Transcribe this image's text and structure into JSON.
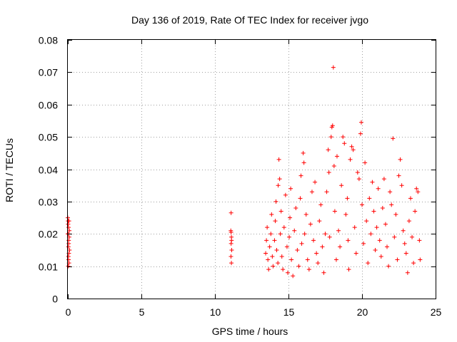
{
  "chart_data": {
    "type": "scatter",
    "title": "Day 136 of 2019, Rate Of TEC Index for receiver jvgo",
    "xlabel": "GPS time / hours",
    "ylabel": "ROTI / TECUs",
    "xlim": [
      0,
      25
    ],
    "ylim": [
      0,
      0.08
    ],
    "x_ticks": [
      0,
      5,
      10,
      15,
      20,
      25
    ],
    "x_tick_labels": [
      "0",
      "5",
      "10",
      "15",
      "20",
      "25"
    ],
    "y_ticks": [
      0,
      0.01,
      0.02,
      0.03,
      0.04,
      0.05,
      0.06,
      0.07,
      0.08
    ],
    "y_tick_labels": [
      "0",
      "0.01",
      "0.02",
      "0.03",
      "0.04",
      "0.05",
      "0.06",
      "0.07",
      "0.08"
    ],
    "grid": true,
    "legend": "none",
    "marker": "plus",
    "series_color": "#ff0000",
    "series": [
      {
        "points": [
          [
            0.0,
            0.025
          ],
          [
            0.02,
            0.024
          ],
          [
            0.05,
            0.022
          ],
          [
            0.03,
            0.02
          ],
          [
            0.06,
            0.018
          ],
          [
            0.04,
            0.016
          ],
          [
            0.07,
            0.014
          ],
          [
            0.05,
            0.012
          ],
          [
            0.08,
            0.011
          ],
          [
            0.1,
            0.021
          ],
          [
            0.09,
            0.019
          ],
          [
            0.02,
            0.023
          ],
          [
            0.06,
            0.017
          ],
          [
            0.04,
            0.013
          ],
          [
            0.11,
            0.015
          ],
          [
            0.03,
            0.01
          ],
          [
            0.08,
            0.024
          ],
          [
            0.0,
            0.02
          ],
          [
            11.1,
            0.0265
          ],
          [
            11.08,
            0.021
          ],
          [
            11.12,
            0.019
          ],
          [
            11.1,
            0.017
          ],
          [
            11.14,
            0.015
          ],
          [
            11.09,
            0.013
          ],
          [
            11.12,
            0.011
          ],
          [
            11.1,
            0.0205
          ],
          [
            11.13,
            0.018
          ],
          [
            13.45,
            0.014
          ],
          [
            13.5,
            0.018
          ],
          [
            13.55,
            0.022
          ],
          [
            13.6,
            0.012
          ],
          [
            13.65,
            0.009
          ],
          [
            13.72,
            0.016
          ],
          [
            13.8,
            0.02
          ],
          [
            13.85,
            0.026
          ],
          [
            13.9,
            0.013
          ],
          [
            13.95,
            0.01
          ],
          [
            14.05,
            0.018
          ],
          [
            14.1,
            0.024
          ],
          [
            14.15,
            0.03
          ],
          [
            14.2,
            0.015
          ],
          [
            14.28,
            0.011
          ],
          [
            14.3,
            0.035
          ],
          [
            14.35,
            0.043
          ],
          [
            14.4,
            0.037
          ],
          [
            14.45,
            0.02
          ],
          [
            14.5,
            0.027
          ],
          [
            14.55,
            0.013
          ],
          [
            14.62,
            0.009
          ],
          [
            14.7,
            0.022
          ],
          [
            14.8,
            0.032
          ],
          [
            14.9,
            0.016
          ],
          [
            14.95,
            0.008
          ],
          [
            15.05,
            0.019
          ],
          [
            15.1,
            0.025
          ],
          [
            15.15,
            0.034
          ],
          [
            15.2,
            0.012
          ],
          [
            15.3,
            0.007
          ],
          [
            15.4,
            0.021
          ],
          [
            15.5,
            0.028
          ],
          [
            15.6,
            0.015
          ],
          [
            15.7,
            0.01
          ],
          [
            15.8,
            0.031
          ],
          [
            15.85,
            0.038
          ],
          [
            15.9,
            0.017
          ],
          [
            16.0,
            0.045
          ],
          [
            16.05,
            0.042
          ],
          [
            16.1,
            0.02
          ],
          [
            16.2,
            0.026
          ],
          [
            16.3,
            0.012
          ],
          [
            16.4,
            0.009
          ],
          [
            16.5,
            0.023
          ],
          [
            16.6,
            0.033
          ],
          [
            16.7,
            0.018
          ],
          [
            16.8,
            0.036
          ],
          [
            16.9,
            0.014
          ],
          [
            17.0,
            0.011
          ],
          [
            17.1,
            0.024
          ],
          [
            17.2,
            0.029
          ],
          [
            17.3,
            0.016
          ],
          [
            17.4,
            0.008
          ],
          [
            17.5,
            0.02
          ],
          [
            17.6,
            0.033
          ],
          [
            17.7,
            0.046
          ],
          [
            17.75,
            0.039
          ],
          [
            17.8,
            0.019
          ],
          [
            17.9,
            0.05
          ],
          [
            17.95,
            0.053
          ],
          [
            18.0,
            0.0535
          ],
          [
            18.05,
            0.0715
          ],
          [
            18.1,
            0.041
          ],
          [
            18.15,
            0.027
          ],
          [
            18.25,
            0.012
          ],
          [
            18.3,
            0.044
          ],
          [
            18.4,
            0.021
          ],
          [
            18.5,
            0.016
          ],
          [
            18.6,
            0.035
          ],
          [
            18.7,
            0.05
          ],
          [
            18.8,
            0.048
          ],
          [
            18.9,
            0.026
          ],
          [
            19.0,
            0.031
          ],
          [
            19.05,
            0.018
          ],
          [
            19.1,
            0.009
          ],
          [
            19.2,
            0.043
          ],
          [
            19.3,
            0.047
          ],
          [
            19.4,
            0.046
          ],
          [
            19.5,
            0.022
          ],
          [
            19.6,
            0.014
          ],
          [
            19.7,
            0.039
          ],
          [
            19.8,
            0.037
          ],
          [
            19.9,
            0.051
          ],
          [
            19.95,
            0.0545
          ],
          [
            20.0,
            0.029
          ],
          [
            20.1,
            0.017
          ],
          [
            20.2,
            0.042
          ],
          [
            20.3,
            0.024
          ],
          [
            20.4,
            0.011
          ],
          [
            20.5,
            0.031
          ],
          [
            20.6,
            0.02
          ],
          [
            20.7,
            0.036
          ],
          [
            20.8,
            0.027
          ],
          [
            20.9,
            0.015
          ],
          [
            21.0,
            0.022
          ],
          [
            21.1,
            0.034
          ],
          [
            21.2,
            0.018
          ],
          [
            21.3,
            0.013
          ],
          [
            21.4,
            0.028
          ],
          [
            21.5,
            0.037
          ],
          [
            21.6,
            0.023
          ],
          [
            21.7,
            0.016
          ],
          [
            21.8,
            0.01
          ],
          [
            21.9,
            0.033
          ],
          [
            22.0,
            0.029
          ],
          [
            22.1,
            0.0495
          ],
          [
            22.2,
            0.019
          ],
          [
            22.3,
            0.026
          ],
          [
            22.4,
            0.012
          ],
          [
            22.5,
            0.038
          ],
          [
            22.6,
            0.043
          ],
          [
            22.7,
            0.035
          ],
          [
            22.8,
            0.021
          ],
          [
            22.9,
            0.017
          ],
          [
            23.0,
            0.014
          ],
          [
            23.1,
            0.008
          ],
          [
            23.2,
            0.024
          ],
          [
            23.3,
            0.031
          ],
          [
            23.4,
            0.019
          ],
          [
            23.5,
            0.011
          ],
          [
            23.6,
            0.027
          ],
          [
            23.7,
            0.034
          ],
          [
            23.8,
            0.033
          ],
          [
            23.9,
            0.018
          ],
          [
            23.95,
            0.012
          ]
        ]
      }
    ]
  }
}
